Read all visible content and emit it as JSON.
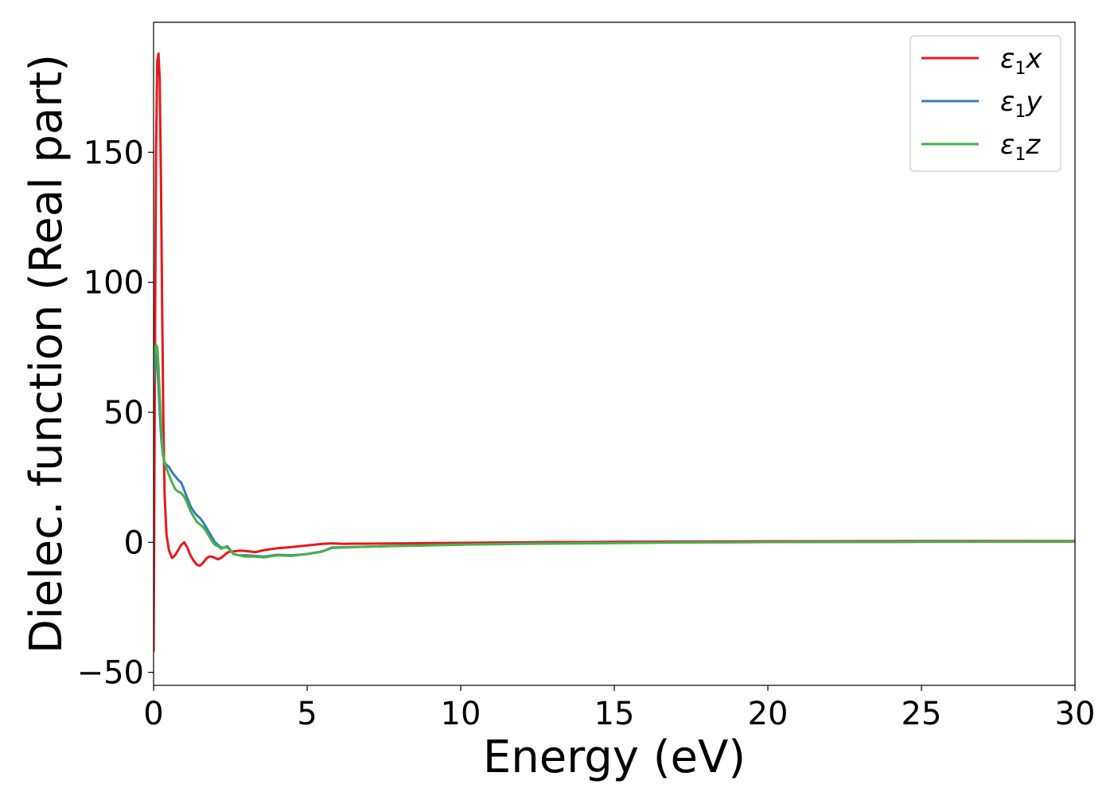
{
  "chart_data": {
    "type": "line",
    "title": "",
    "xlabel": "Energy (eV)",
    "ylabel": "Dielec. function (Real part)",
    "xlim": [
      0,
      30
    ],
    "ylim": [
      -55,
      200
    ],
    "xticks": [
      0,
      5,
      10,
      15,
      20,
      25,
      30
    ],
    "yticks": [
      -50,
      0,
      50,
      100,
      150
    ],
    "grid": false,
    "legend_position": "top-right",
    "series": [
      {
        "name": "ε1x",
        "legend": {
          "base": "ε",
          "sub": "1",
          "tail": "x"
        },
        "color": "#e41a1c",
        "x": [
          0,
          0.04,
          0.08,
          0.12,
          0.16,
          0.2,
          0.24,
          0.28,
          0.32,
          0.36,
          0.42,
          0.5,
          0.6,
          0.7,
          0.8,
          0.9,
          1.0,
          1.1,
          1.2,
          1.3,
          1.4,
          1.5,
          1.6,
          1.7,
          1.8,
          1.9,
          2.0,
          2.1,
          2.2,
          2.3,
          2.4,
          2.5,
          2.6,
          2.8,
          3.0,
          3.3,
          3.6,
          4.0,
          4.5,
          5.0,
          5.5,
          5.8,
          6.2,
          6.5,
          7.0,
          8.0,
          9.0,
          10.0,
          11.0,
          12.0,
          13.0,
          14.0,
          15.0,
          17.0,
          20.0,
          25.0,
          30.0
        ],
        "values": [
          -42,
          60,
          150,
          185,
          188,
          178,
          140,
          90,
          45,
          18,
          3,
          -3,
          -6,
          -5,
          -3,
          -1,
          0,
          -2,
          -5,
          -7,
          -8.5,
          -9,
          -8,
          -6.5,
          -5.5,
          -5.5,
          -6,
          -6.5,
          -6,
          -5,
          -4,
          -3.5,
          -3.5,
          -3.2,
          -3.3,
          -3.8,
          -3.0,
          -2.3,
          -1.8,
          -1.2,
          -0.6,
          -0.4,
          -0.6,
          -0.5,
          -0.5,
          -0.4,
          -0.3,
          -0.2,
          -0.1,
          0,
          0.1,
          0.1,
          0.2,
          0.3,
          0.4,
          0.5,
          0.5
        ]
      },
      {
        "name": "ε1y",
        "legend": {
          "base": "ε",
          "sub": "1",
          "tail": "y"
        },
        "color": "#377eb8",
        "x": [
          0,
          0.04,
          0.08,
          0.12,
          0.16,
          0.2,
          0.25,
          0.3,
          0.35,
          0.4,
          0.5,
          0.6,
          0.7,
          0.8,
          0.9,
          1.0,
          1.1,
          1.2,
          1.3,
          1.4,
          1.5,
          1.6,
          1.7,
          1.8,
          1.9,
          2.0,
          2.1,
          2.2,
          2.3,
          2.4,
          2.5,
          2.6,
          2.8,
          3.0,
          3.3,
          3.6,
          4.0,
          4.5,
          5.0,
          5.5,
          5.8,
          6.5,
          7.5,
          8.5,
          10.0,
          12.0,
          14.0,
          17.0,
          20.0,
          25.0,
          30.0
        ],
        "values": [
          60,
          72,
          72,
          68,
          60,
          50,
          40,
          34,
          31,
          30,
          29,
          27,
          25.5,
          24,
          23,
          20,
          17,
          14,
          12,
          10.5,
          9.5,
          8,
          6,
          4,
          2,
          0,
          -1,
          -2,
          -2,
          -1.5,
          -3,
          -4.5,
          -5,
          -5,
          -5.2,
          -5.5,
          -4.8,
          -5,
          -4.5,
          -3.5,
          -2,
          -1.8,
          -1.5,
          -1.2,
          -0.8,
          -0.5,
          -0.3,
          0,
          0.1,
          0.2,
          0.3
        ]
      },
      {
        "name": "ε1z",
        "legend": {
          "base": "ε",
          "sub": "1",
          "tail": "z"
        },
        "color": "#4daf4a",
        "x": [
          0,
          0.04,
          0.08,
          0.12,
          0.16,
          0.2,
          0.25,
          0.3,
          0.35,
          0.4,
          0.5,
          0.6,
          0.7,
          0.8,
          0.9,
          1.0,
          1.1,
          1.2,
          1.3,
          1.4,
          1.5,
          1.6,
          1.7,
          1.8,
          1.9,
          2.0,
          2.1,
          2.2,
          2.3,
          2.4,
          2.5,
          2.6,
          2.8,
          3.0,
          3.3,
          3.6,
          4.0,
          4.5,
          5.0,
          5.5,
          5.8,
          6.5,
          7.5,
          8.5,
          10.0,
          12.0,
          14.0,
          17.0,
          20.0,
          25.0,
          30.0
        ],
        "values": [
          62,
          74,
          76,
          75,
          68,
          56,
          44,
          35,
          31,
          29,
          26,
          23,
          20.5,
          19.5,
          19,
          17.5,
          15,
          12,
          10,
          8,
          7,
          6,
          4.5,
          2.5,
          0.5,
          -1,
          -1.5,
          -2.5,
          -2,
          -2,
          -3,
          -4.5,
          -5,
          -5.5,
          -5.5,
          -5.8,
          -5,
          -5.2,
          -4.5,
          -3.5,
          -2.2,
          -1.8,
          -1.5,
          -1.3,
          -0.9,
          -0.6,
          -0.4,
          -0.1,
          0.1,
          0.2,
          0.3
        ]
      }
    ]
  }
}
